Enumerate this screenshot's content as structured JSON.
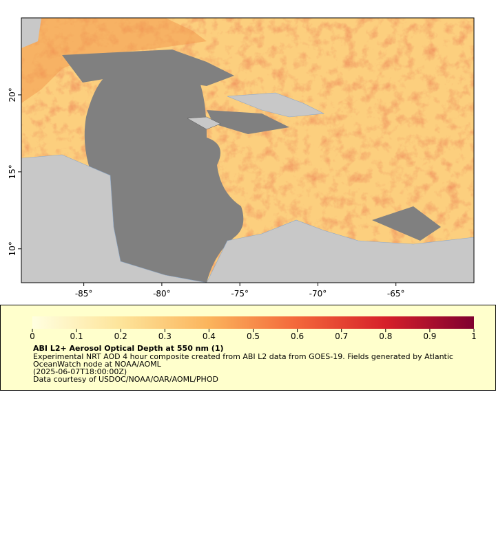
{
  "map": {
    "xlim": [
      -89,
      -60
    ],
    "ylim": [
      7.8,
      25
    ],
    "xticks": [
      {
        "value": -85,
        "label": "-85°"
      },
      {
        "value": -80,
        "label": "-80°"
      },
      {
        "value": -75,
        "label": "-75°"
      },
      {
        "value": -70,
        "label": "-70°"
      },
      {
        "value": -65,
        "label": "-65°"
      }
    ],
    "yticks": [
      {
        "value": 10,
        "label": "10°"
      },
      {
        "value": 15,
        "label": "15°"
      },
      {
        "value": 20,
        "label": "20°"
      }
    ]
  },
  "colorbar": {
    "ticks": [
      0,
      0.1,
      0.2,
      0.3,
      0.4,
      0.5,
      0.6,
      0.7,
      0.8,
      0.9,
      1
    ]
  },
  "legend": {
    "title": "ABI L2+ Aerosol Optical Depth at 550 nm (1)",
    "lines": [
      "Experimental NRT AOD 4 hour composite created from ABI L2 data from GOES-19. Fields generated by Atlantic",
      "OceanWatch node at NOAA/AOML",
      "(2025-06-07T18:00:00Z)",
      "Data courtesy of USDOC/NOAA/OAR/AOML/PHOD"
    ]
  }
}
